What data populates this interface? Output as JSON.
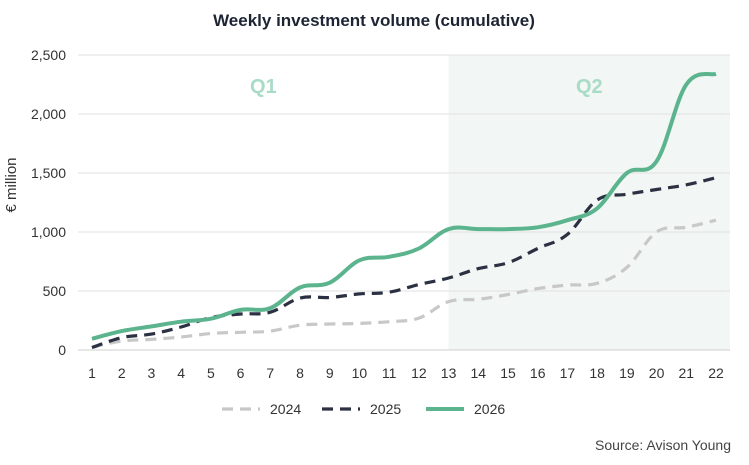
{
  "chart_data": {
    "type": "line",
    "title": "Weekly investment volume (cumulative)",
    "ylabel": "€ million",
    "xlabel": "",
    "x": [
      1,
      2,
      3,
      4,
      5,
      6,
      7,
      8,
      9,
      10,
      11,
      12,
      13,
      14,
      15,
      16,
      17,
      18,
      19,
      20,
      21,
      22
    ],
    "ylim": [
      0,
      2500
    ],
    "yticks": [
      0,
      500,
      1000,
      1500,
      2000,
      2500
    ],
    "ytick_labels": [
      "0",
      "500",
      "1,000",
      "1,500",
      "2,000",
      "2,500"
    ],
    "grid": true,
    "legend_position": "bottom",
    "regions": [
      {
        "label": "Q1",
        "from_week": 1,
        "to_week": 13,
        "color": "#ffffff"
      },
      {
        "label": "Q2",
        "from_week": 13,
        "to_week": 22,
        "color": "#f2f6f4"
      }
    ],
    "series": [
      {
        "name": "2024",
        "style": "dashed",
        "color": "#c8c8c8",
        "values": [
          25,
          75,
          90,
          110,
          140,
          150,
          160,
          210,
          220,
          225,
          240,
          270,
          410,
          430,
          470,
          520,
          550,
          565,
          700,
          1000,
          1040,
          1100
        ]
      },
      {
        "name": "2025",
        "style": "dashed",
        "color": "#2b3142",
        "values": [
          20,
          105,
          135,
          195,
          275,
          305,
          320,
          440,
          445,
          475,
          490,
          555,
          610,
          690,
          740,
          860,
          980,
          1270,
          1320,
          1360,
          1400,
          1460
        ]
      },
      {
        "name": "2026",
        "style": "solid",
        "color": "#5cb48e",
        "values": [
          95,
          160,
          200,
          240,
          265,
          340,
          355,
          530,
          570,
          760,
          790,
          860,
          1025,
          1025,
          1025,
          1040,
          1100,
          1200,
          1500,
          1600,
          2250,
          2340
        ]
      }
    ],
    "source": "Source: Avison Young"
  }
}
